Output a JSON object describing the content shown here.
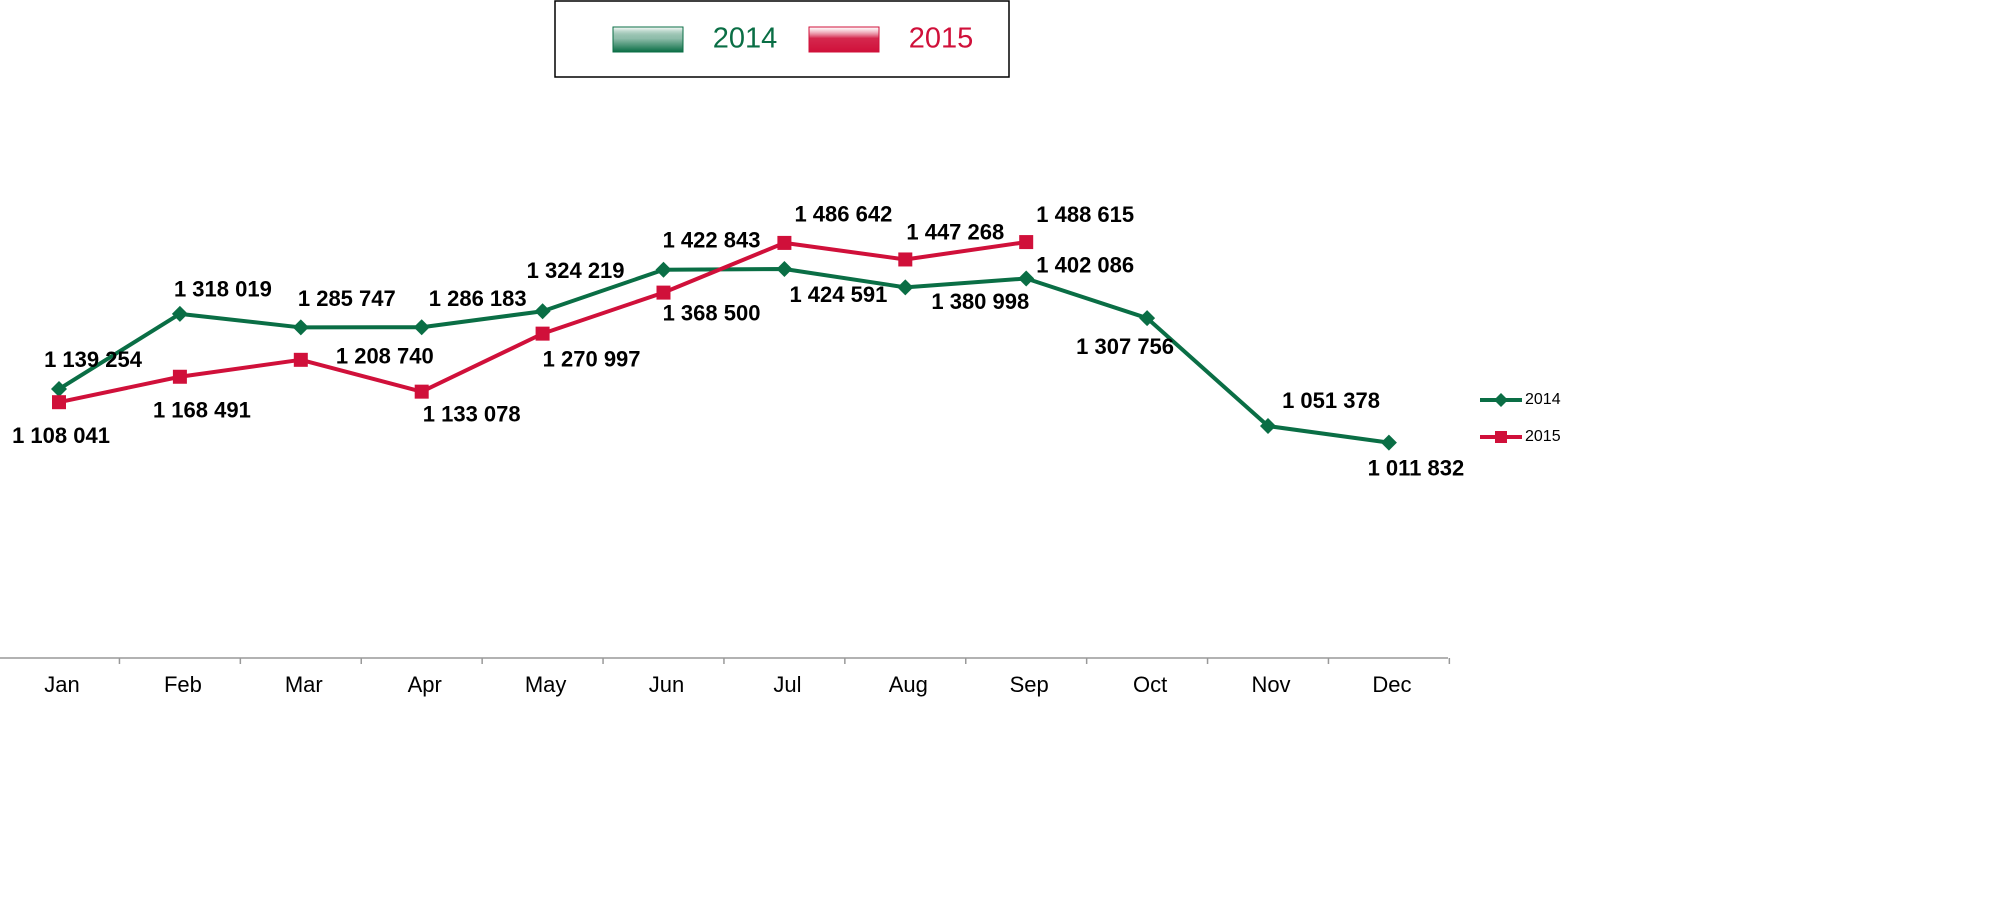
{
  "chart_data": {
    "type": "line",
    "categories": [
      "Jan",
      "Feb",
      "Mar",
      "Apr",
      "May",
      "Jun",
      "Jul",
      "Aug",
      "Sep",
      "Oct",
      "Nov",
      "Dec"
    ],
    "ylim": [
      500000,
      1900000
    ],
    "series": [
      {
        "name": "2014",
        "color": "#0a6e45",
        "values": [
          1139254,
          1318019,
          1285747,
          1286183,
          1324219,
          1422843,
          1424591,
          1380998,
          1402086,
          1307756,
          1051378,
          1011832
        ],
        "value_labels": [
          "1 139 254",
          "1 318 019",
          "1 285 747",
          "1 286 183",
          "1 324 219",
          "1 422 843",
          "1 424 591",
          "1 380 998",
          "1 402 086",
          "1 307 756",
          "1 051 378",
          "1 011 832"
        ]
      },
      {
        "name": "2015",
        "color": "#d0103a",
        "values": [
          1108041,
          1168491,
          1208740,
          1133078,
          1270997,
          1368500,
          1486642,
          1447268,
          1488615,
          null,
          null,
          null
        ],
        "value_labels": [
          "1 108 041",
          "1 168 491",
          "1 208 740",
          "1 133 078",
          "1 270 997",
          "1 368 500",
          "1 486 642",
          "1 447 268",
          "1 488 615",
          null,
          null,
          null
        ]
      }
    ],
    "legend": "top"
  }
}
